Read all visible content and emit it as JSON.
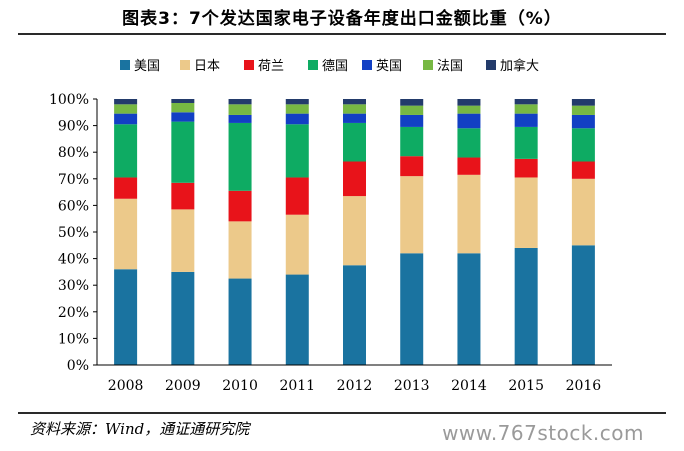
{
  "title": "图表3：7个发达国家电子设备年度出口金额比重（%）",
  "source": "资料来源：Wind，通证通研究院",
  "watermark": "www.767stock.com",
  "chart_data": {
    "type": "bar",
    "stacked": true,
    "categories": [
      "2008",
      "2009",
      "2010",
      "2011",
      "2012",
      "2013",
      "2014",
      "2015",
      "2016"
    ],
    "series": [
      {
        "name": "美国",
        "color": "#1a73a0",
        "values": [
          36,
          35,
          32.5,
          34,
          37.5,
          42,
          42,
          44,
          45
        ]
      },
      {
        "name": "日本",
        "color": "#ecc98a",
        "values": [
          26.5,
          23.5,
          21.5,
          22.5,
          26,
          29,
          29.5,
          26.5,
          25
        ]
      },
      {
        "name": "荷兰",
        "color": "#e8131a",
        "values": [
          8,
          10,
          11.5,
          14,
          13,
          7.5,
          6.5,
          7,
          6.5
        ]
      },
      {
        "name": "德国",
        "color": "#0eab63",
        "values": [
          20,
          23,
          25.5,
          20,
          14.5,
          11,
          11,
          12,
          12.5
        ]
      },
      {
        "name": "英国",
        "color": "#1240c4",
        "values": [
          4,
          3.5,
          3,
          4,
          3.5,
          4.5,
          5.5,
          5,
          5
        ]
      },
      {
        "name": "法国",
        "color": "#77b843",
        "values": [
          3.5,
          3.5,
          4,
          3.5,
          3.5,
          3.5,
          3,
          3.5,
          3.5
        ]
      },
      {
        "name": "加拿大",
        "color": "#233b6b",
        "values": [
          2,
          1.5,
          2,
          2,
          2,
          2.5,
          2.5,
          2,
          2.5
        ]
      }
    ],
    "ylim": [
      0,
      100
    ],
    "yticks": [
      "0%",
      "10%",
      "20%",
      "30%",
      "40%",
      "50%",
      "60%",
      "70%",
      "80%",
      "90%",
      "100%"
    ],
    "legend_position": "top",
    "grid": false
  }
}
